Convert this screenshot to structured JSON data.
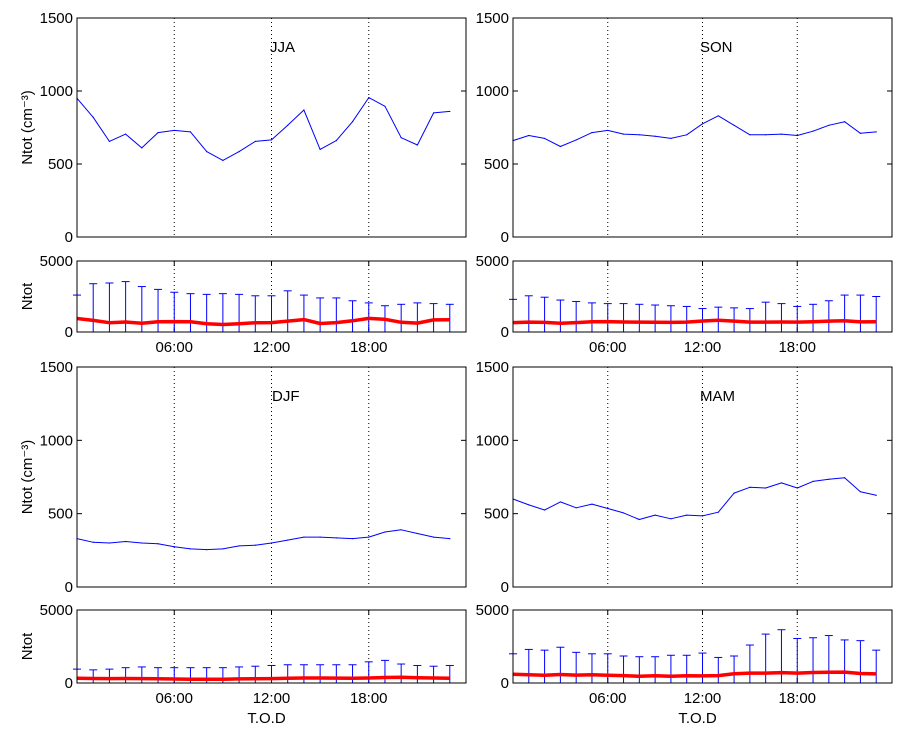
{
  "chart_data": [
    {
      "type": "line",
      "title": "JJA",
      "xlabel": "",
      "ylabel": "Ntot (cm⁻³)",
      "ylim": [
        0,
        1500
      ],
      "yticks": [
        "0",
        "500",
        "1000",
        "1500"
      ],
      "xlim": [
        0,
        24
      ],
      "vlines": [
        6,
        12,
        18
      ],
      "x": [
        0,
        1,
        2,
        3,
        4,
        5,
        6,
        7,
        8,
        9,
        10,
        11,
        12,
        13,
        14,
        15,
        16,
        17,
        18,
        19,
        20,
        21,
        22,
        23
      ],
      "series": [
        {
          "name": "",
          "color": "#0000ff",
          "values": [
            950,
            820,
            655,
            705,
            610,
            715,
            730,
            720,
            585,
            525,
            585,
            655,
            665,
            765,
            870,
            600,
            660,
            790,
            955,
            895,
            680,
            630,
            850,
            860
          ]
        }
      ]
    },
    {
      "type": "line",
      "title": "SON",
      "xlabel": "",
      "ylabel": "",
      "ylim": [
        0,
        1500
      ],
      "yticks": [
        "0",
        "500",
        "1000",
        "1500"
      ],
      "xlim": [
        0,
        24
      ],
      "vlines": [
        6,
        12,
        18
      ],
      "x": [
        0,
        1,
        2,
        3,
        4,
        5,
        6,
        7,
        8,
        9,
        10,
        11,
        12,
        13,
        14,
        15,
        16,
        17,
        18,
        19,
        20,
        21,
        22,
        23
      ],
      "series": [
        {
          "name": "",
          "color": "#0000ff",
          "values": [
            660,
            695,
            675,
            620,
            665,
            715,
            730,
            705,
            700,
            690,
            675,
            700,
            775,
            830,
            765,
            700,
            700,
            705,
            695,
            725,
            765,
            790,
            710,
            720
          ]
        }
      ]
    },
    {
      "type": "line",
      "title": "DJF",
      "xlabel": "",
      "ylabel": "Ntot (cm⁻³)",
      "ylim": [
        0,
        1500
      ],
      "yticks": [
        "0",
        "500",
        "1000",
        "1500"
      ],
      "xlim": [
        0,
        24
      ],
      "vlines": [
        6,
        12,
        18
      ],
      "x": [
        0,
        1,
        2,
        3,
        4,
        5,
        6,
        7,
        8,
        9,
        10,
        11,
        12,
        13,
        14,
        15,
        16,
        17,
        18,
        19,
        20,
        21,
        22,
        23
      ],
      "series": [
        {
          "name": "",
          "color": "#0000ff",
          "values": [
            330,
            305,
            300,
            310,
            300,
            295,
            275,
            260,
            255,
            260,
            280,
            285,
            300,
            320,
            340,
            340,
            335,
            330,
            340,
            375,
            390,
            365,
            340,
            330
          ]
        }
      ]
    },
    {
      "type": "line",
      "title": "MAM",
      "xlabel": "",
      "ylabel": "",
      "ylim": [
        0,
        1500
      ],
      "yticks": [
        "0",
        "500",
        "1000",
        "1500"
      ],
      "xlim": [
        0,
        24
      ],
      "vlines": [
        6,
        12,
        18
      ],
      "x": [
        0,
        1,
        2,
        3,
        4,
        5,
        6,
        7,
        8,
        9,
        10,
        11,
        12,
        13,
        14,
        15,
        16,
        17,
        18,
        19,
        20,
        21,
        22,
        23
      ],
      "series": [
        {
          "name": "",
          "color": "#0000ff",
          "values": [
            600,
            560,
            525,
            580,
            540,
            565,
            535,
            505,
            460,
            490,
            465,
            490,
            485,
            510,
            640,
            680,
            675,
            710,
            675,
            720,
            735,
            745,
            650,
            625
          ]
        }
      ]
    },
    {
      "type": "line",
      "title": "",
      "xlabel": "",
      "ylabel": "Ntot",
      "ylim": [
        0,
        5000
      ],
      "yticks": [
        "0",
        "5000"
      ],
      "xlim": [
        0,
        24
      ],
      "xticks": [
        "06:00",
        "12:00",
        "18:00"
      ],
      "vlines": [
        6,
        12,
        18
      ],
      "x": [
        0,
        1,
        2,
        3,
        4,
        5,
        6,
        7,
        8,
        9,
        10,
        11,
        12,
        13,
        14,
        15,
        16,
        17,
        18,
        19,
        20,
        21,
        22,
        23
      ],
      "series": [
        {
          "name": "",
          "color": "#ff0000",
          "values": [
            950,
            820,
            655,
            705,
            610,
            715,
            730,
            720,
            585,
            525,
            585,
            655,
            665,
            765,
            870,
            600,
            660,
            790,
            955,
            895,
            680,
            630,
            850,
            860
          ]
        }
      ],
      "errorbars": [
        2600,
        3400,
        3450,
        3550,
        3200,
        3000,
        2800,
        2700,
        2650,
        2700,
        2650,
        2550,
        2550,
        2900,
        2600,
        2400,
        2400,
        2200,
        2050,
        1850,
        1950,
        2050,
        2000,
        1950
      ]
    },
    {
      "type": "line",
      "title": "",
      "xlabel": "",
      "ylabel": "",
      "ylim": [
        0,
        5000
      ],
      "yticks": [
        "0",
        "5000"
      ],
      "xlim": [
        0,
        24
      ],
      "xticks": [
        "06:00",
        "12:00",
        "18:00"
      ],
      "vlines": [
        6,
        12,
        18
      ],
      "x": [
        0,
        1,
        2,
        3,
        4,
        5,
        6,
        7,
        8,
        9,
        10,
        11,
        12,
        13,
        14,
        15,
        16,
        17,
        18,
        19,
        20,
        21,
        22,
        23
      ],
      "series": [
        {
          "name": "",
          "color": "#ff0000",
          "values": [
            660,
            695,
            675,
            620,
            665,
            715,
            730,
            705,
            700,
            690,
            675,
            700,
            775,
            830,
            765,
            700,
            700,
            705,
            695,
            725,
            765,
            790,
            710,
            720
          ]
        }
      ],
      "errorbars": [
        2300,
        2550,
        2450,
        2250,
        2150,
        2050,
        2000,
        2000,
        1950,
        1900,
        1850,
        1800,
        1650,
        1750,
        1700,
        1650,
        2100,
        2000,
        1800,
        1950,
        2200,
        2600,
        2600,
        2500
      ]
    },
    {
      "type": "line",
      "title": "",
      "xlabel": "T.O.D",
      "ylabel": "Ntot",
      "ylim": [
        0,
        5000
      ],
      "yticks": [
        "0",
        "5000"
      ],
      "xlim": [
        0,
        24
      ],
      "xticks": [
        "06:00",
        "12:00",
        "18:00"
      ],
      "vlines": [
        6,
        12,
        18
      ],
      "x": [
        0,
        1,
        2,
        3,
        4,
        5,
        6,
        7,
        8,
        9,
        10,
        11,
        12,
        13,
        14,
        15,
        16,
        17,
        18,
        19,
        20,
        21,
        22,
        23
      ],
      "series": [
        {
          "name": "",
          "color": "#ff0000",
          "values": [
            330,
            305,
            300,
            310,
            300,
            295,
            275,
            260,
            255,
            260,
            280,
            285,
            300,
            320,
            340,
            340,
            335,
            330,
            340,
            375,
            390,
            365,
            340,
            330
          ]
        }
      ],
      "errorbars": [
        950,
        900,
        950,
        1050,
        1100,
        1050,
        1050,
        1050,
        1050,
        1050,
        1100,
        1150,
        1200,
        1250,
        1250,
        1250,
        1250,
        1250,
        1450,
        1550,
        1300,
        1200,
        1150,
        1200
      ]
    },
    {
      "type": "line",
      "title": "",
      "xlabel": "T.O.D",
      "ylabel": "",
      "ylim": [
        0,
        5000
      ],
      "yticks": [
        "0",
        "5000"
      ],
      "xlim": [
        0,
        24
      ],
      "xticks": [
        "06:00",
        "12:00",
        "18:00"
      ],
      "vlines": [
        6,
        12,
        18
      ],
      "x": [
        0,
        1,
        2,
        3,
        4,
        5,
        6,
        7,
        8,
        9,
        10,
        11,
        12,
        13,
        14,
        15,
        16,
        17,
        18,
        19,
        20,
        21,
        22,
        23
      ],
      "series": [
        {
          "name": "",
          "color": "#ff0000",
          "values": [
            600,
            560,
            525,
            580,
            540,
            565,
            535,
            505,
            460,
            490,
            465,
            490,
            485,
            510,
            640,
            680,
            675,
            710,
            675,
            720,
            735,
            745,
            650,
            625
          ]
        }
      ],
      "errorbars": [
        2000,
        2300,
        2250,
        2450,
        2100,
        2000,
        2000,
        1850,
        1800,
        1800,
        1900,
        1900,
        2050,
        1750,
        1850,
        2600,
        3350,
        3650,
        3050,
        3100,
        3250,
        2950,
        2900,
        2250
      ]
    }
  ]
}
